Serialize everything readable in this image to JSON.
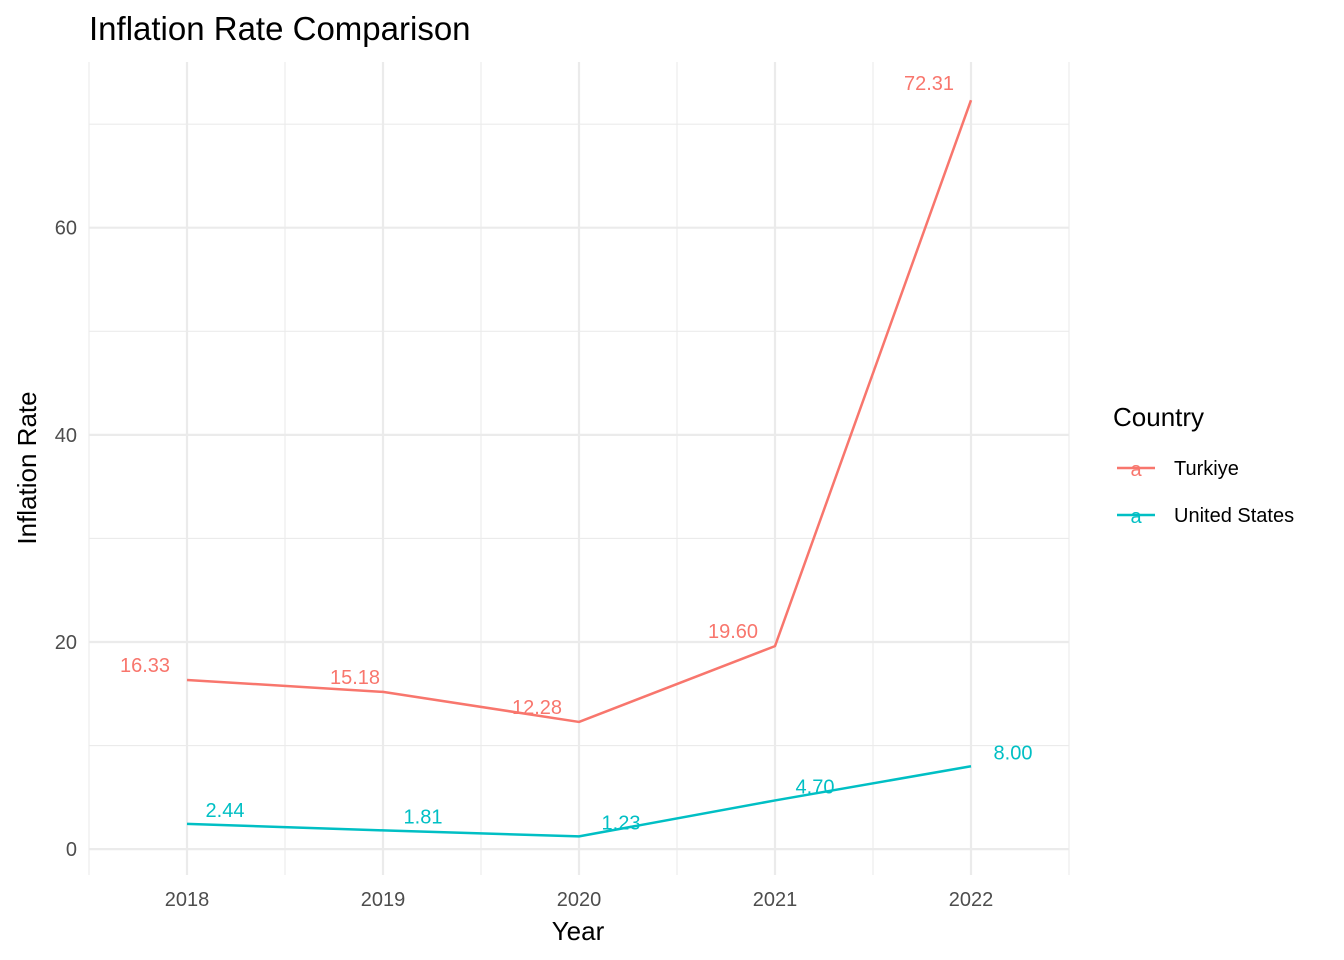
{
  "chart_data": {
    "type": "line",
    "title": "Inflation Rate Comparison",
    "xlabel": "Year",
    "ylabel": "Inflation Rate",
    "x": [
      2018,
      2019,
      2020,
      2021,
      2022
    ],
    "xlim": [
      2017.5,
      2022.5
    ],
    "ylim": [
      -2.5,
      76
    ],
    "y_ticks": [
      0,
      20,
      40,
      60
    ],
    "grid": true,
    "legend": {
      "title": "Country",
      "placement": "right"
    },
    "series": [
      {
        "name": "Turkiye",
        "color": "#F8766D",
        "values": [
          16.33,
          15.18,
          12.28,
          19.6,
          72.31
        ],
        "labels": [
          "16.33",
          "15.18",
          "12.28",
          "19.60",
          "72.31"
        ]
      },
      {
        "name": "United States",
        "color": "#00BFC4",
        "values": [
          2.44,
          1.81,
          1.23,
          4.7,
          8.0
        ],
        "labels": [
          "2.44",
          "1.81",
          "1.23",
          "4.70",
          "8.00"
        ]
      }
    ],
    "legend_key_glyph": "a"
  }
}
